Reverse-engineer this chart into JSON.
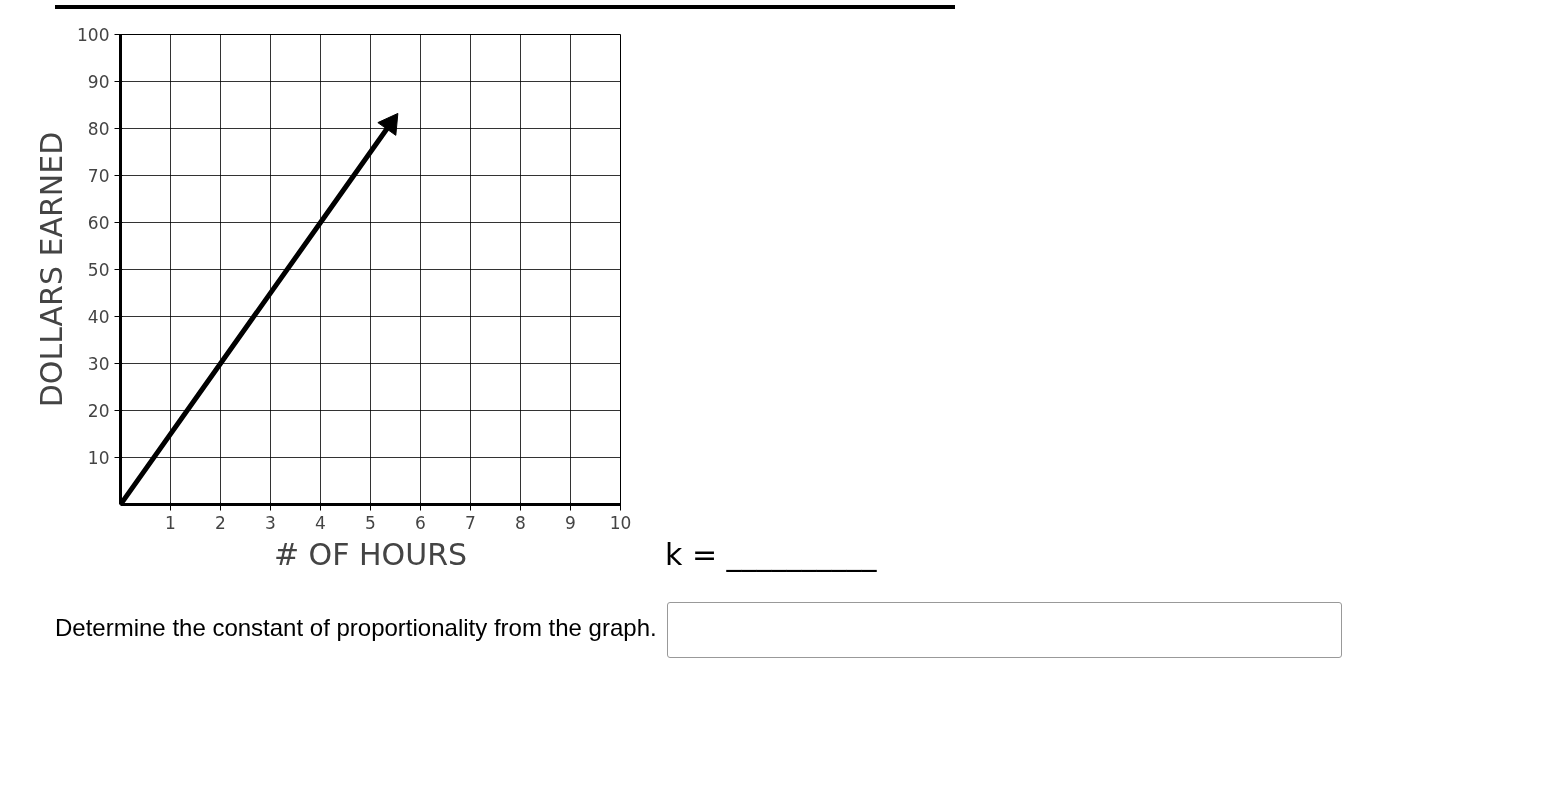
{
  "chart_data": {
    "type": "line",
    "xlabel": "# OF HOURS",
    "ylabel": "DOLLARS EARNED",
    "x": [
      0,
      2,
      4,
      5.4
    ],
    "series": [
      {
        "color": "#000000",
        "values": [
          0,
          30,
          60,
          81
        ]
      }
    ],
    "xlim": [
      0,
      10
    ],
    "ylim": [
      0,
      100
    ],
    "xticks": [
      1,
      2,
      3,
      4,
      5,
      6,
      7,
      8,
      9,
      10
    ],
    "yticks": [
      10,
      20,
      30,
      40,
      50,
      60,
      70,
      80,
      90,
      100
    ],
    "grid": true,
    "marker": "none",
    "line_style": "solid",
    "annotations": [
      "k = __________",
      "Determine the constant of proportionality from the graph."
    ]
  }
}
